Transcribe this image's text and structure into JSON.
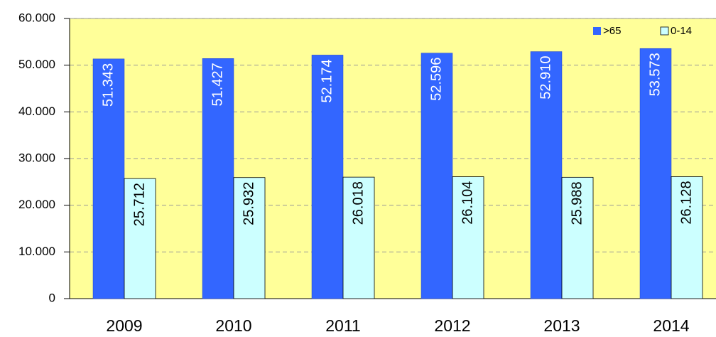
{
  "chart_data": {
    "type": "bar",
    "categories": [
      "2009",
      "2010",
      "2011",
      "2012",
      "2013",
      "2014"
    ],
    "series": [
      {
        "name": ">65",
        "color": "#3366ff",
        "values": [
          51343,
          51427,
          52174,
          52596,
          52910,
          53573
        ],
        "value_labels": [
          "51.343",
          "51.427",
          "52.174",
          "52.596",
          "52.910",
          "53.573"
        ]
      },
      {
        "name": "0-14",
        "color": "#ccffff",
        "values": [
          25712,
          25932,
          26018,
          26104,
          25988,
          26128
        ],
        "value_labels": [
          "25.712",
          "25.932",
          "26.018",
          "26.104",
          "25.988",
          "26.128"
        ]
      }
    ],
    "ylim": [
      0,
      60000
    ],
    "yticks": [
      0,
      {
        "value": 10000,
        "label": "10.000"
      },
      {
        "value": 20000,
        "label": "20.000"
      },
      {
        "value": 30000,
        "label": "30.000"
      },
      {
        "value": 40000,
        "label": "40.000"
      },
      {
        "value": 50000,
        "label": "50.000"
      },
      {
        "value": 60000,
        "label": "60.000"
      }
    ],
    "grid": true,
    "legend": "top-right",
    "background": "#ffff99"
  }
}
